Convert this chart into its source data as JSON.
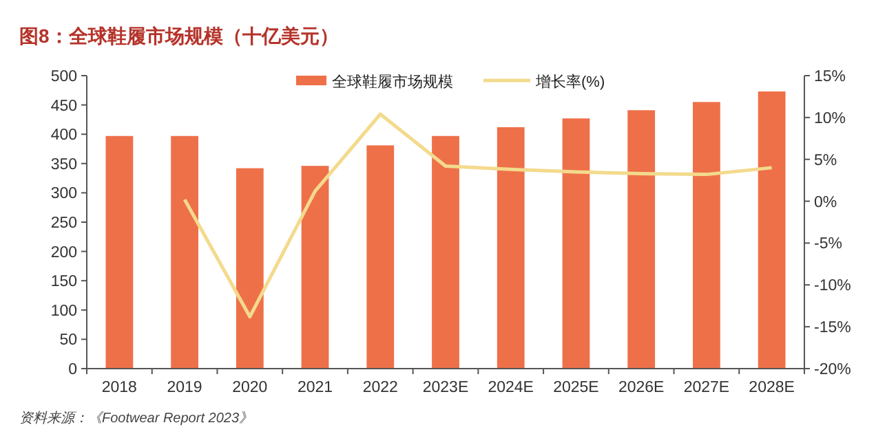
{
  "chart_data": {
    "type": "bar",
    "title": "图8：全球鞋履市场规模（十亿美元）",
    "categories": [
      "2018",
      "2019",
      "2020",
      "2021",
      "2022",
      "2023E",
      "2024E",
      "2025E",
      "2026E",
      "2027E",
      "2028E"
    ],
    "series": [
      {
        "name": "全球鞋履市场规模",
        "color": "#ee7049",
        "values": [
          397,
          397,
          342,
          346,
          381,
          397,
          412,
          427,
          441,
          455,
          473
        ]
      },
      {
        "name": "增长率(%)",
        "type": "line",
        "axis": "y2",
        "color": "#f3da8c",
        "values": [
          null,
          0.2,
          -13.8,
          1.2,
          10.4,
          4.2,
          3.8,
          3.5,
          3.3,
          3.2,
          4.0
        ]
      }
    ],
    "ylim": [
      0,
      500
    ],
    "yticks": [
      0,
      50,
      100,
      150,
      200,
      250,
      300,
      350,
      400,
      450,
      500
    ],
    "y2lim": [
      -20,
      15
    ],
    "y2ticks": [
      {
        "value": -20,
        "label": "-20%"
      },
      {
        "value": -15,
        "label": "-15%"
      },
      {
        "value": -10,
        "label": "-10%"
      },
      {
        "value": -5,
        "label": "-5%"
      },
      {
        "value": 0,
        "label": "0%"
      },
      {
        "value": 5,
        "label": "5%"
      },
      {
        "value": 10,
        "label": "10%"
      },
      {
        "value": 15,
        "label": "15%"
      }
    ],
    "legend": "top right",
    "grid": false,
    "annotations": [
      "资料来源：《Footwear Report 2023》"
    ]
  }
}
